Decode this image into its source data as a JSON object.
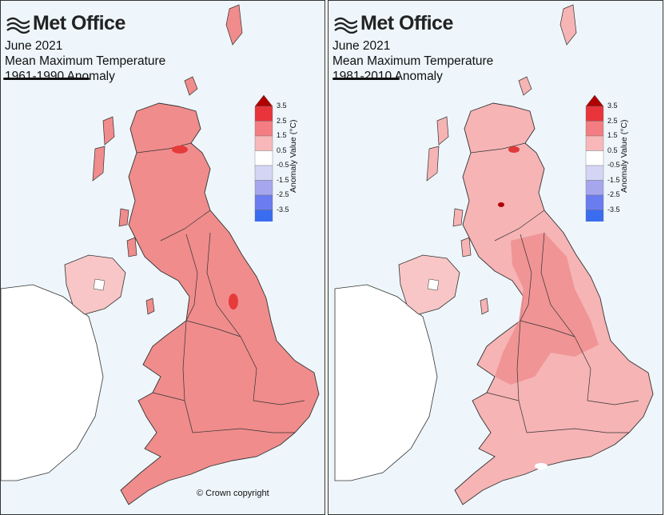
{
  "brand": {
    "name": "Met Office",
    "logo_icon": "met-office-wave-icon"
  },
  "legend": {
    "title": "Anomaly Value (°C)",
    "ticks": [
      "3.5",
      "2.5",
      "1.5",
      "0.5",
      "-0.5",
      "-1.5",
      "-2.5",
      "-3.5"
    ],
    "colors": [
      "#b00000",
      "#e8343a",
      "#f37d82",
      "#f8b8b9",
      "#ffffff",
      "#d4d4f5",
      "#a6a6ee",
      "#6a7cf0",
      "#3a6cf0",
      "#0000a8"
    ]
  },
  "maps": [
    {
      "line1": "June 2021",
      "line2": "Mean Maximum Temperature",
      "line3": "1961-1990 Anomaly",
      "fill_color": "#f08c8c",
      "accent_color": "#e63b3b"
    },
    {
      "line1": "June 2021",
      "line2": "Mean Maximum Temperature",
      "line3": "1981-2010 Anomaly",
      "fill_color": "#f6b4b5",
      "accent_color": "#ee8e8f"
    }
  ],
  "copyright": "© Crown copyright"
}
